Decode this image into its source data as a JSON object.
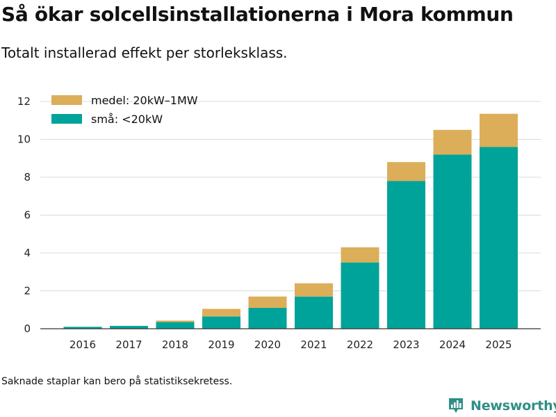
{
  "header": {
    "title": "Så ökar solcellsinstallationerna i Mora kommun",
    "subtitle": "Totalt installerad effekt per storleksklass."
  },
  "footer": {
    "note": "Saknade staplar kan bero på statistiksekretess.",
    "brand": "Newsworthy"
  },
  "colors": {
    "small": "#00a399",
    "medium": "#dcae5a",
    "grid": "#d9d9d9",
    "brand": "#2f8f86"
  },
  "chart_data": {
    "type": "bar",
    "stacked": true,
    "title": "Så ökar solcellsinstallationerna i Mora kommun",
    "subtitle": "Totalt installerad effekt per storleksklass.",
    "xlabel": "",
    "ylabel": "",
    "ylim": [
      0,
      12
    ],
    "yticks": [
      0,
      2,
      4,
      6,
      8,
      10,
      12
    ],
    "grid": true,
    "legend_position": "top-left",
    "categories": [
      "2016",
      "2017",
      "2018",
      "2019",
      "2020",
      "2021",
      "2022",
      "2023",
      "2024",
      "2025"
    ],
    "series": [
      {
        "name": "små: <20kW",
        "color": "#00a399",
        "values": [
          0.1,
          0.15,
          0.35,
          0.65,
          1.1,
          1.7,
          3.5,
          7.8,
          9.2,
          9.6
        ]
      },
      {
        "name": "medel: 20kW–1MW",
        "color": "#dcae5a",
        "values": [
          0,
          0,
          0.08,
          0.4,
          0.6,
          0.7,
          0.8,
          1.0,
          1.3,
          1.75
        ]
      }
    ]
  }
}
